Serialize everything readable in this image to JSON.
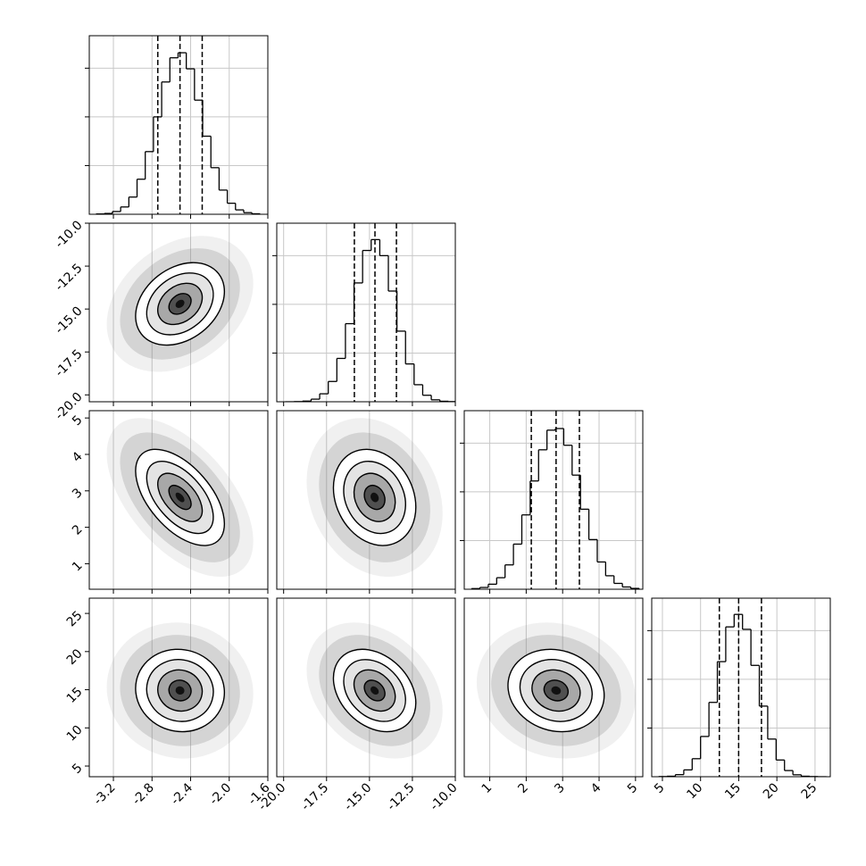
{
  "chart_data": {
    "type": "corner",
    "line_color": "#000000",
    "point_color": "#808080",
    "grid": true,
    "hist_ylim": [
      0,
      1100
    ],
    "hist_yticks": [
      300,
      600,
      900
    ],
    "parameters": [
      {
        "lim": [
          -3.45,
          -1.6
        ],
        "ticks": [
          -3.2,
          -2.8,
          -2.4,
          {
            "value": -2.0,
            "label": "-2.0"
          },
          -1.6
        ],
        "bins": [
          -3.38,
          -3.295,
          -3.21,
          -3.125,
          -3.04,
          -2.955,
          -2.87,
          -2.785,
          -2.7,
          -2.615,
          -2.53,
          -2.445,
          -2.36,
          -2.275,
          -2.19,
          -2.105,
          -2.02,
          -1.935,
          -1.85,
          -1.765,
          -1.68
        ],
        "counts": [
          2,
          5,
          17,
          45,
          106,
          216,
          386,
          600,
          815,
          964,
          995,
          896,
          703,
          481,
          287,
          149,
          68,
          27,
          10,
          3
        ],
        "quantiles": [
          -2.74,
          -2.51,
          -2.28
        ],
        "mean": -2.51,
        "std": 0.23
      },
      {
        "lim": [
          -20.4,
          -10
        ],
        "ticks": [
          {
            "value": -20,
            "label": "-20.0"
          },
          -17.5,
          {
            "value": -15,
            "label": "-15.0"
          },
          -12.5,
          {
            "value": -10,
            "label": "-10.0"
          }
        ],
        "bins": [
          -19.9,
          -19.4,
          -18.9,
          -18.4,
          -17.9,
          -17.4,
          -16.9,
          -16.4,
          -15.9,
          -15.4,
          -14.9,
          -14.4,
          -13.9,
          -13.4,
          -12.9,
          -12.4,
          -11.9,
          -11.4,
          -10.9,
          -10.4,
          -9.9
        ],
        "counts": [
          0,
          1,
          4,
          16,
          49,
          125,
          267,
          481,
          732,
          932,
          999,
          900,
          682,
          435,
          233,
          105,
          40,
          12,
          3,
          1
        ],
        "quantiles": [
          -15.88,
          -14.68,
          -13.43
        ],
        "mean": -14.7,
        "std": 1.2
      },
      {
        "lim": [
          0.3,
          5.2
        ],
        "ticks": [
          1,
          2,
          3,
          4,
          5
        ],
        "bins": [
          0.5,
          0.73,
          0.96,
          1.19,
          1.42,
          1.65,
          1.88,
          2.11,
          2.34,
          2.57,
          2.8,
          3.03,
          3.26,
          3.49,
          3.72,
          3.95,
          4.18,
          4.41,
          4.64,
          4.87,
          5.1
        ],
        "counts": [
          4,
          11,
          31,
          71,
          150,
          278,
          458,
          667,
          859,
          980,
          990,
          887,
          703,
          493,
          306,
          168,
          83,
          36,
          14,
          5
        ],
        "quantiles": [
          2.14,
          2.82,
          3.46
        ],
        "mean": 2.82,
        "std": 0.66
      },
      {
        "lim": [
          3.6,
          27
        ],
        "ticks": [
          5,
          10,
          15,
          20,
          25
        ],
        "bins": [
          4.5,
          5.6,
          6.7,
          7.8,
          8.9,
          10,
          11.1,
          12.2,
          13.3,
          14.4,
          15.5,
          16.6,
          17.7,
          18.8,
          19.9,
          21,
          22.1,
          23.2,
          24.3,
          25.4,
          26.5
        ],
        "counts": [
          1,
          3,
          13,
          42,
          111,
          248,
          458,
          709,
          923,
          1000,
          908,
          686,
          435,
          232,
          103,
          38,
          12,
          3,
          1,
          0
        ],
        "quantiles": [
          12.46,
          14.99,
          17.98
        ],
        "mean": 14.9,
        "std": 2.7
      }
    ],
    "pairs": [
      {
        "x": 0,
        "y": 1,
        "corr": 0.3
      },
      {
        "x": 0,
        "y": 2,
        "corr": -0.55
      },
      {
        "x": 1,
        "y": 2,
        "corr": -0.2
      },
      {
        "x": 0,
        "y": 3,
        "corr": -0.05
      },
      {
        "x": 1,
        "y": 3,
        "corr": -0.3
      },
      {
        "x": 2,
        "y": 3,
        "corr": -0.12
      }
    ]
  }
}
